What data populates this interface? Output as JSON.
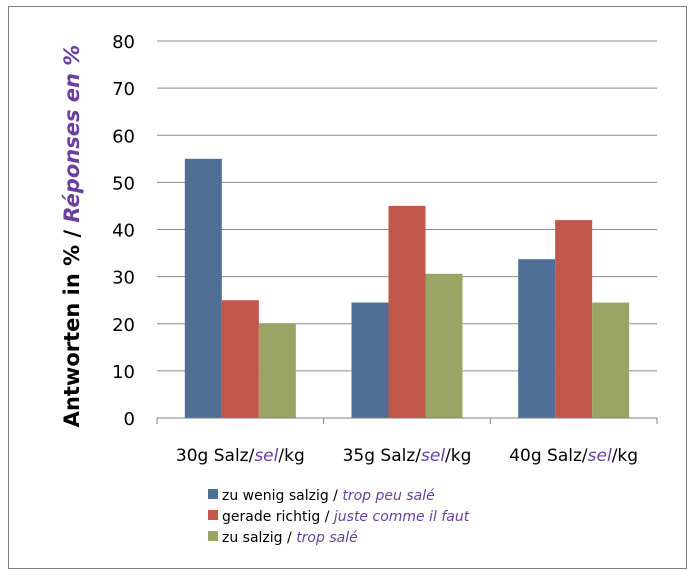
{
  "chart_data": {
    "type": "bar",
    "ylabel_part1": "Antworten in % / ",
    "ylabel_part2": "Réponses en %",
    "ylim": [
      0,
      80
    ],
    "yticks": [
      0,
      10,
      20,
      30,
      40,
      50,
      60,
      70,
      80
    ],
    "grid": true,
    "legend_position": "bottom",
    "categories": [
      {
        "part1": "30g Salz/",
        "part2": "sel",
        "part3": "/kg"
      },
      {
        "part1": "35g Salz/",
        "part2": "sel",
        "part3": "/kg"
      },
      {
        "part1": "40g Salz/",
        "part2": "sel",
        "part3": "/kg"
      }
    ],
    "series": [
      {
        "name_de": "zu wenig salzig / ",
        "name_fr": "trop peu salé",
        "color": "#4f6f97",
        "values": [
          55,
          24.5,
          33.7
        ]
      },
      {
        "name_de": "gerade richtig / ",
        "name_fr": "juste comme il faut",
        "color": "#c0574a",
        "values": [
          25,
          45,
          42
        ]
      },
      {
        "name_de": "zu salzig / ",
        "name_fr": "trop salé",
        "color": "#9aa464",
        "values": [
          20,
          30.6,
          24.5
        ]
      }
    ]
  }
}
